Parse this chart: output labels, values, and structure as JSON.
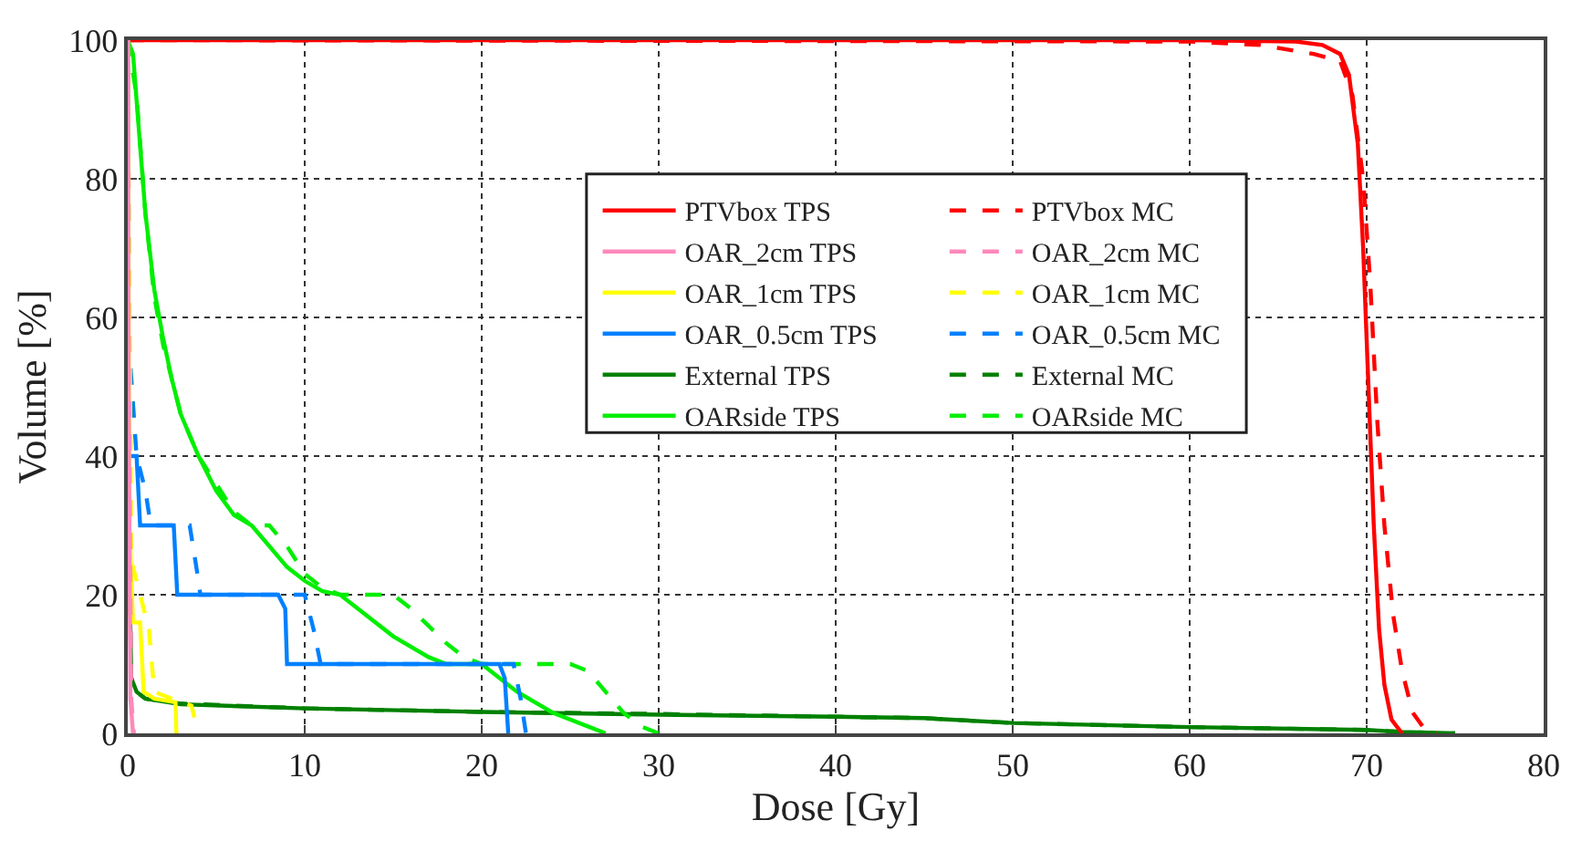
{
  "chart_data": {
    "type": "line",
    "xlabel": "Dose [Gy]",
    "ylabel": "Volume [%]",
    "xlim": [
      0,
      80
    ],
    "xticks": [
      0,
      10,
      20,
      30,
      40,
      50,
      60,
      70,
      80
    ],
    "ylim": [
      0,
      100
    ],
    "yticks": [
      0,
      20,
      40,
      60,
      80,
      100
    ],
    "grid": true,
    "legend": "top center",
    "marker": "none",
    "series": [
      {
        "name": "PTVbox TPS",
        "color": "#ff0000",
        "line_style": "solid",
        "x": [
          0,
          60,
          66,
          67.5,
          68.5,
          69,
          69.5,
          69.8,
          70.1,
          70.4,
          70.7,
          71,
          71.4,
          72
        ],
        "values": [
          100,
          100,
          99.8,
          99.3,
          98,
          95,
          85,
          70,
          50,
          30,
          15,
          7,
          2,
          0
        ]
      },
      {
        "name": "PTVbox MC",
        "color": "#ff0000",
        "line_style": "dashed",
        "x": [
          0,
          60,
          64,
          67,
          68.5,
          69.2,
          69.8,
          70.2,
          70.6,
          71,
          71.5,
          72,
          72.6,
          73.3,
          74
        ],
        "values": [
          100,
          99.8,
          99.3,
          98,
          97,
          92,
          80,
          65,
          45,
          30,
          17,
          9,
          3,
          0.5,
          0
        ]
      },
      {
        "name": "OAR_2cm TPS",
        "color": "#ff88bb",
        "line_style": "solid",
        "x": [
          0,
          0.05,
          0.15,
          0.3
        ],
        "values": [
          100,
          50,
          5,
          0
        ]
      },
      {
        "name": "OAR_2cm MC",
        "color": "#ff88bb",
        "line_style": "dashed",
        "x": [
          0,
          0.07,
          0.2,
          0.35
        ],
        "values": [
          100,
          50,
          5,
          0
        ]
      },
      {
        "name": "OAR_1cm TPS",
        "color": "#ffff00",
        "line_style": "solid",
        "x": [
          0,
          0.1,
          0.3,
          0.7,
          0.9,
          1.5,
          2.7,
          2.75
        ],
        "values": [
          100,
          30,
          16,
          16,
          6,
          5,
          4.5,
          0
        ]
      },
      {
        "name": "OAR_1cm MC",
        "color": "#ffff00",
        "line_style": "dashed",
        "x": [
          0,
          0.2,
          0.7,
          1.2,
          1.5,
          2.5,
          3.6,
          4
        ],
        "values": [
          100,
          25,
          20,
          15,
          6,
          5,
          4,
          0
        ]
      },
      {
        "name": "OAR_0.5cm TPS",
        "color": "#0080ff",
        "line_style": "solid",
        "x": [
          0,
          0.05,
          0.5,
          0.7,
          2.6,
          2.8,
          8.5,
          8.9,
          9,
          21,
          21.3,
          21.5
        ],
        "values": [
          100,
          40,
          40,
          30,
          30,
          20,
          20,
          18,
          10,
          10,
          8,
          0
        ]
      },
      {
        "name": "OAR_0.5cm MC",
        "color": "#0080ff",
        "line_style": "dashed",
        "x": [
          0,
          0.1,
          0.5,
          1.0,
          1.3,
          3.5,
          4.0,
          4.1,
          10,
          10.5,
          10.9,
          21.8,
          22.2,
          22.5
        ],
        "values": [
          100,
          55,
          40,
          35,
          30,
          30,
          22,
          20,
          20,
          15,
          10,
          10,
          5,
          0
        ]
      },
      {
        "name": "External TPS",
        "color": "#008000",
        "line_style": "solid",
        "x": [
          0,
          0.05,
          0.2,
          0.5,
          1,
          3,
          10,
          20,
          30,
          40,
          45,
          50,
          60,
          70,
          72,
          75
        ],
        "values": [
          100,
          30,
          8,
          6,
          5,
          4.2,
          3.6,
          3.1,
          2.7,
          2.4,
          2.2,
          1.5,
          0.9,
          0.5,
          0.2,
          0
        ]
      },
      {
        "name": "External MC",
        "color": "#008000",
        "line_style": "dashed",
        "x": [
          0,
          0.05,
          0.2,
          0.5,
          1,
          3,
          10,
          20,
          30,
          40,
          45,
          50,
          60,
          70,
          72,
          75
        ],
        "values": [
          100,
          30,
          8,
          6,
          5,
          4.3,
          3.6,
          3.1,
          2.8,
          2.4,
          2.2,
          1.5,
          0.9,
          0.5,
          0.2,
          0
        ]
      },
      {
        "name": "OARside TPS",
        "color": "#00ee00",
        "line_style": "solid",
        "x": [
          0,
          0.3,
          0.6,
          1,
          1.5,
          2,
          2.5,
          3,
          4,
          5,
          6,
          7,
          8,
          9,
          10,
          11,
          12,
          13,
          15,
          17,
          18,
          20,
          21,
          22,
          24,
          26,
          27
        ],
        "values": [
          100,
          98,
          88,
          75,
          64,
          57,
          51,
          46,
          40,
          35,
          31.5,
          30,
          27,
          24,
          22,
          20.5,
          20,
          18,
          14,
          11,
          10,
          10,
          8,
          6,
          3,
          1,
          0
        ]
      },
      {
        "name": "OARside MC",
        "color": "#00ee00",
        "line_style": "dashed",
        "x": [
          0,
          0.5,
          1,
          1.5,
          2,
          3,
          4,
          5,
          6,
          7,
          8,
          9,
          10,
          11,
          12,
          15,
          16,
          18,
          19,
          20,
          25,
          26,
          27,
          28,
          29,
          30
        ],
        "values": [
          100,
          92,
          75,
          63,
          56,
          46,
          40,
          36,
          32,
          30,
          30,
          27,
          23,
          21,
          20,
          20,
          18,
          13,
          11,
          10,
          10,
          9,
          6,
          3,
          1,
          0
        ]
      }
    ]
  }
}
